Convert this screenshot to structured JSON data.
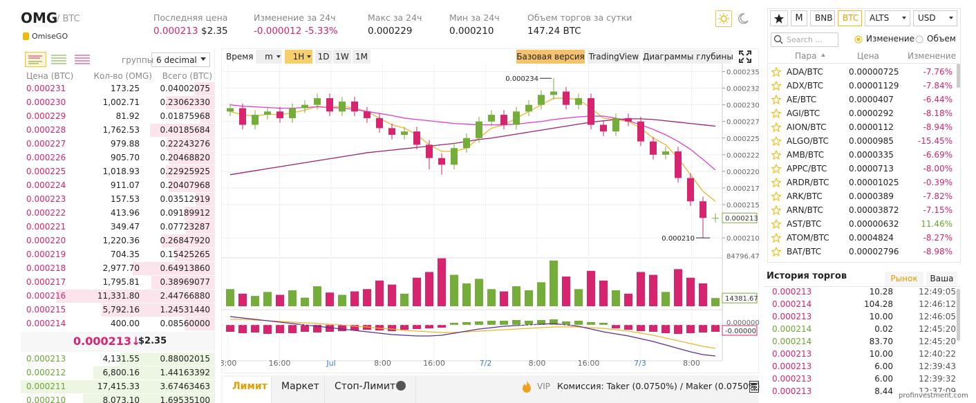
{
  "header": {
    "symbol": "OMG",
    "quote": "/ BTC",
    "name": "OmiseGO",
    "stats": [
      {
        "label": "Последняя цена",
        "value": "0.000213",
        "extra": "$2.35",
        "color": "#d6246e"
      },
      {
        "label": "Изменение за 24ч",
        "value": "-0.000012",
        "extra": "-5.33%",
        "color": "#d6246e"
      },
      {
        "label": "Макс за 24ч",
        "value": "0.000229",
        "color": "#222222"
      },
      {
        "label": "Мин за 24ч",
        "value": "0.000210",
        "color": "#222222"
      },
      {
        "label": "Объем торгов за сутки",
        "value": "147.24 BTC",
        "color": "#222222"
      }
    ]
  },
  "orderbook": {
    "group_label": "группы",
    "decimal": "6 decimal",
    "columns": [
      "Цена (BTC)",
      "Кол-во (OMG)",
      "Всего (BTC)"
    ],
    "asks": [
      [
        "0.000231",
        "173.25",
        "0.04002075"
      ],
      [
        "0.000230",
        "1,002.71",
        "0.23062330"
      ],
      [
        "0.000229",
        "81.92",
        "0.01875968"
      ],
      [
        "0.000228",
        "1,762.53",
        "0.40185684"
      ],
      [
        "0.000227",
        "979.88",
        "0.22243276"
      ],
      [
        "0.000226",
        "905.70",
        "0.20468820"
      ],
      [
        "0.000225",
        "1,018.93",
        "0.22925925"
      ],
      [
        "0.000224",
        "911.07",
        "0.20407968"
      ],
      [
        "0.000223",
        "157.53",
        "0.03512919"
      ],
      [
        "0.000222",
        "413.96",
        "0.09189912"
      ],
      [
        "0.000221",
        "349.47",
        "0.07723287"
      ],
      [
        "0.000220",
        "1,220.36",
        "0.26847920"
      ],
      [
        "0.000219",
        "704.35",
        "0.15425265"
      ],
      [
        "0.000218",
        "2,977.70",
        "0.64913860"
      ],
      [
        "0.000217",
        "1,795.81",
        "0.38969077"
      ],
      [
        "0.000216",
        "11,331.80",
        "2.44766880"
      ],
      [
        "0.000215",
        "5,792.16",
        "1.24531440"
      ],
      [
        "0.000214",
        "400.00",
        "0.08560000"
      ]
    ],
    "last_price": "0.000213↓",
    "last_usd": "$2.35",
    "bids": [
      [
        "0.000213",
        "4,131.55",
        "0.88002015"
      ],
      [
        "0.000212",
        "6,800.16",
        "1.44163392"
      ],
      [
        "0.000211",
        "17,415.33",
        "3.67463463"
      ],
      [
        "0.000210",
        "8,073.10",
        "1.69535100"
      ]
    ],
    "ask_color": "#d6246e",
    "bid_color": "#6aa533"
  },
  "chart_toolbar": {
    "time_label": "Время",
    "minutes": "m",
    "intervals": [
      "1H",
      "1D",
      "1W",
      "1M"
    ],
    "views": [
      "Базовая версия",
      "TradingView",
      "Диаграммы глубины"
    ]
  },
  "chart_data": {
    "type": "candlestick",
    "x_labels": [
      "8:00",
      "16:00",
      "Jul",
      "8:00",
      "16:00",
      "7/2",
      "8:00",
      "16:00",
      "7/3",
      "8:00"
    ],
    "x_label_colors": [
      "#666666",
      "#666666",
      "#3a7bd5",
      "#666666",
      "#666666",
      "#3a7bd5",
      "#666666",
      "#666666",
      "#3a7bd5",
      "#666666"
    ],
    "up_color": "#74ad3a",
    "down_color": "#d6246e",
    "open": [
      0.000229,
      0.0002295,
      0.000227,
      0.0002285,
      0.000229,
      0.000228,
      0.0002295,
      0.00023,
      0.000231,
      0.000229,
      0.0002305,
      0.000229,
      0.000228,
      0.0002265,
      0.0002255,
      0.000226,
      0.000224,
      0.000222,
      0.000221,
      0.0002235,
      0.000225,
      0.0002275,
      0.0002285,
      0.000227,
      0.000229,
      0.00023,
      0.0002315,
      0.000232,
      0.00023,
      0.000231,
      0.000227,
      0.000226,
      0.000228,
      0.0002275,
      0.0002245,
      0.0002225,
      0.000223,
      0.000219,
      0.0002155,
      0.000213
    ],
    "high": [
      0.0002302,
      0.0002302,
      0.0002292,
      0.0002297,
      0.0002297,
      0.0002302,
      0.0002307,
      0.0002317,
      0.0002317,
      0.0002312,
      0.0002312,
      0.0002297,
      0.0002287,
      0.0002272,
      0.0002267,
      0.0002267,
      0.0002247,
      0.0002227,
      0.0002242,
      0.0002257,
      0.0002282,
      0.0002292,
      0.0002292,
      0.0002297,
      0.0002307,
      0.0002322,
      0.000234,
      0.0002327,
      0.0002317,
      0.0002317,
      0.0002277,
      0.0002287,
      0.0002287,
      0.0002282,
      0.0002252,
      0.0002237,
      0.0002237,
      0.0002197,
      0.0002162,
      0.0002137
    ],
    "low": [
      0.0002283,
      0.0002263,
      0.0002263,
      0.0002278,
      0.0002273,
      0.0002273,
      0.0002288,
      0.0002293,
      0.0002283,
      0.0002283,
      0.0002283,
      0.0002273,
      0.0002258,
      0.0002248,
      0.0002248,
      0.0002233,
      0.0002203,
      0.0002195,
      0.0002203,
      0.0002228,
      0.0002243,
      0.0002268,
      0.0002263,
      0.0002263,
      0.0002283,
      0.0002293,
      0.0002308,
      0.0002293,
      0.0002293,
      0.0002263,
      0.0002253,
      0.0002253,
      0.0002268,
      0.0002238,
      0.0002218,
      0.0002218,
      0.0002183,
      0.0002148,
      0.00021,
      0.0002123
    ],
    "close": [
      0.0002295,
      0.000227,
      0.0002285,
      0.000229,
      0.000228,
      0.0002295,
      0.00023,
      0.000231,
      0.000229,
      0.0002305,
      0.000229,
      0.000228,
      0.0002265,
      0.0002255,
      0.000226,
      0.000224,
      0.000222,
      0.000221,
      0.0002235,
      0.000225,
      0.0002275,
      0.0002285,
      0.000227,
      0.000229,
      0.00023,
      0.0002315,
      0.000232,
      0.00023,
      0.000231,
      0.000227,
      0.000226,
      0.000228,
      0.0002275,
      0.0002245,
      0.0002225,
      0.000223,
      0.000219,
      0.0002155,
      0.000213,
      0.000213
    ],
    "low_marker_label": "0.000210",
    "ylim": [
      0.0002071,
      0.0002361
    ],
    "yticks": [
      0.000235,
      {
        "value": 0.0002325,
        "label": "0.000232"
      },
      {
        "value": 0.00023,
        "label": "0.000230"
      },
      {
        "value": 0.0002275,
        "label": "0.000227"
      },
      0.000225,
      {
        "value": 0.0002225,
        "label": "0.000222"
      },
      {
        "value": 0.00022,
        "label": "0.000220"
      },
      {
        "value": 0.0002175,
        "label": "0.000217"
      },
      0.000215,
      {
        "value": 0.00021,
        "label": "0.000210"
      }
    ],
    "grid": true,
    "moving_averages": [
      {
        "color": "#f0b429",
        "values": [
          0.000229,
          0.0002285,
          0.0002283,
          0.0002286,
          0.0002285,
          0.0002288,
          0.0002292,
          0.0002298,
          0.0002296,
          0.0002298,
          0.0002295,
          0.000229,
          0.000228,
          0.000227,
          0.0002265,
          0.0002255,
          0.000224,
          0.000223,
          0.000223,
          0.0002235,
          0.000225,
          0.0002265,
          0.000227,
          0.000228,
          0.000229,
          0.00023,
          0.000231,
          0.000231,
          0.0002308,
          0.0002295,
          0.000228,
          0.0002278,
          0.0002275,
          0.0002265,
          0.000225,
          0.000224,
          0.000222,
          0.0002195,
          0.000217,
          0.0002155
        ]
      },
      {
        "color": "#e040c8",
        "values": [
          0.00023,
          0.0002298,
          0.0002297,
          0.0002296,
          0.0002295,
          0.0002295,
          0.0002296,
          0.0002297,
          0.0002296,
          0.0002295,
          0.0002293,
          0.000229,
          0.0002287,
          0.0002284,
          0.000228,
          0.0002278,
          0.0002276,
          0.0002274,
          0.0002272,
          0.0002271,
          0.000227,
          0.000227,
          0.000227,
          0.0002271,
          0.0002273,
          0.0002275,
          0.0002278,
          0.000228,
          0.0002282,
          0.0002283,
          0.0002283,
          0.000228,
          0.0002276,
          0.000227,
          0.0002263,
          0.0002255,
          0.0002245,
          0.0002233,
          0.0002218,
          0.0002202
        ]
      },
      {
        "color": "#a0206e",
        "values": [
          0.0002195,
          0.0002198,
          0.0002201,
          0.0002204,
          0.0002207,
          0.000221,
          0.0002213,
          0.0002216,
          0.0002219,
          0.0002222,
          0.0002225,
          0.0002228,
          0.000223,
          0.0002232,
          0.0002234,
          0.0002236,
          0.0002238,
          0.000224,
          0.0002242,
          0.0002245,
          0.0002248,
          0.000225,
          0.0002253,
          0.0002256,
          0.0002259,
          0.0002262,
          0.0002265,
          0.0002268,
          0.0002271,
          0.0002274,
          0.0002276,
          0.0002278,
          0.0002279,
          0.0002279,
          0.0002278,
          0.0002276,
          0.0002274,
          0.0002272,
          0.000227,
          0.0002268
        ]
      }
    ],
    "volume": {
      "values": [
        30000,
        22000,
        18000,
        25000,
        20000,
        28000,
        15000,
        35000,
        24000,
        20000,
        26000,
        30000,
        45000,
        38000,
        22000,
        50000,
        60000,
        84000,
        55000,
        40000,
        48000,
        30000,
        26000,
        35000,
        28000,
        42000,
        80000,
        52000,
        30000,
        62000,
        45000,
        28000,
        22000,
        60000,
        55000,
        25000,
        65000,
        50000,
        40000,
        14381.67
      ],
      "ylim": [
        0,
        84796.47
      ],
      "yticks": [
        84796.47
      ]
    },
    "macd": {
      "histogram": [
        -1e-06,
        -1.2e-06,
        -1.1e-06,
        -1.3e-06,
        -1.2e-06,
        -1.2e-06,
        -1e-06,
        -1.1e-06,
        -1e-06,
        -9e-07,
        -8e-07,
        -7e-07,
        -8e-07,
        -9e-07,
        -7e-07,
        -6e-07,
        -5e-07,
        -4e-07,
        3e-07,
        4e-07,
        5e-07,
        6e-07,
        6e-07,
        7e-07,
        6e-07,
        7e-07,
        8e-07,
        5e-07,
        6e-07,
        4e-07,
        3e-07,
        -5e-07,
        -7e-07,
        -9e-07,
        -1e-06,
        -1.2e-06,
        -1.3e-06,
        -1.2e-06,
        -1.1e-06,
        -1e-06
      ],
      "histogram_last_label": "-0.00000",
      "macd_line": {
        "color": "#5b2c8f",
        "values": [
          1.2e-06,
          1e-06,
          8e-07,
          6e-07,
          4e-07,
          2e-07,
          0,
          -2e-07,
          -4e-07,
          -6e-07,
          -8e-07,
          -1e-06,
          -1.2e-06,
          -1.4e-06,
          -1.5e-06,
          -1.6e-06,
          -1.6e-06,
          -1.5e-06,
          -1.2e-06,
          -9e-07,
          -6e-07,
          -4e-07,
          -2e-07,
          -1e-07,
          0,
          1e-07,
          2e-07,
          0,
          -2e-07,
          -6e-07,
          -1e-06,
          -1.3e-06,
          -1.6e-06,
          -2e-06,
          -2.4e-06,
          -2.9e-06,
          -3.4e-06,
          -3.9e-06,
          -4.3e-06,
          -4.5e-06
        ]
      },
      "signal_line": {
        "color": "#f0b429",
        "values": [
          8e-07,
          8e-07,
          7e-07,
          6e-07,
          5e-07,
          4e-07,
          3e-07,
          2e-07,
          1e-07,
          0,
          -2e-07,
          -3e-07,
          -5e-07,
          -6e-07,
          -8e-07,
          -9e-07,
          -1e-06,
          -1.1e-06,
          -1.1e-06,
          -1e-06,
          -9e-07,
          -8e-07,
          -7e-07,
          -6e-07,
          -5e-07,
          -4e-07,
          -3e-07,
          -3e-07,
          -3e-07,
          -4e-07,
          -5e-07,
          -7e-07,
          -9e-07,
          -1.2e-06,
          -1.5e-06,
          -1.9e-06,
          -2.3e-06,
          -2.7e-06,
          -3.1e-06,
          -3.4e-06
        ]
      },
      "ylim": [
        -5e-06,
        1.5e-06
      ],
      "yticks": [
        {
          "value": 0,
          "label": "0.000000"
        }
      ]
    }
  },
  "markets": {
    "m_tab": "M",
    "tabs": [
      "BNB",
      "BTC",
      "ALTS",
      "USD"
    ],
    "search_placeholder": "Search ...",
    "sort_options": [
      "Изменение",
      "Объем"
    ],
    "columns": [
      "Пара",
      "Цена",
      "Изменение"
    ],
    "rows": [
      [
        "ADA/BTC",
        "0.00000725",
        "-7.76%"
      ],
      [
        "ADX/BTC",
        "0.00001129",
        "-7.84%"
      ],
      [
        "AE/BTC",
        "0.0000407",
        "-6.44%"
      ],
      [
        "AGI/BTC",
        "0.0000292",
        "-8.18%"
      ],
      [
        "AION/BTC",
        "0.0000112",
        "-8.94%"
      ],
      [
        "ALGO/BTC",
        "0.0000985",
        "-15.45%"
      ],
      [
        "AMB/BTC",
        "0.0000335",
        "-6.69%"
      ],
      [
        "APPC/BTC",
        "0.0000713",
        "-8.00%"
      ],
      [
        "ARDR/BTC",
        "0.00001025",
        "-0.39%"
      ],
      [
        "ARK/BTC",
        "0.0000389",
        "-7.82%"
      ],
      [
        "ARN/BTC",
        "0.00003872",
        "-7.15%"
      ],
      [
        "AST/BTC",
        "0.00000632",
        "11.46%"
      ],
      [
        "ATOM/BTC",
        "0.0004824",
        "-8.27%"
      ],
      [
        "BAT/BTC",
        "0.00002796",
        "-8.98%"
      ]
    ]
  },
  "trades": {
    "title": "История торгов",
    "tabs": [
      "Рынок",
      "Ваша"
    ],
    "rows": [
      [
        "0.000213",
        "10.28",
        "12:49:05"
      ],
      [
        "0.000214",
        "104.28",
        "12:46:12"
      ],
      [
        "0.000213",
        "10.00",
        "12:46:05"
      ],
      [
        "0.000214",
        "0.02",
        "12:45:20"
      ],
      [
        "0.000214",
        "83.70",
        "12:45:20"
      ],
      [
        "0.000213",
        "10.00",
        "12:40:22"
      ],
      [
        "0.000213",
        "6.00",
        "12:39:43"
      ],
      [
        "0.000213",
        "6.00",
        "12:39:32"
      ],
      [
        "0.000213",
        "8.44",
        "12:37:09"
      ]
    ],
    "side_colors": [
      "#d6246e",
      "#d6246e",
      "#d6246e",
      "#6aa533",
      "#6aa533",
      "#d6246e",
      "#d6246e",
      "#d6246e",
      "#d6246e"
    ]
  },
  "order_form": {
    "tabs": [
      "Лимит",
      "Маркет",
      "Стоп-Лимит"
    ],
    "vip": "VIP",
    "fee": "Комиссия: Taker (0.0750%) / Maker (0.0750%)"
  },
  "watermark": "profinvestment.com"
}
